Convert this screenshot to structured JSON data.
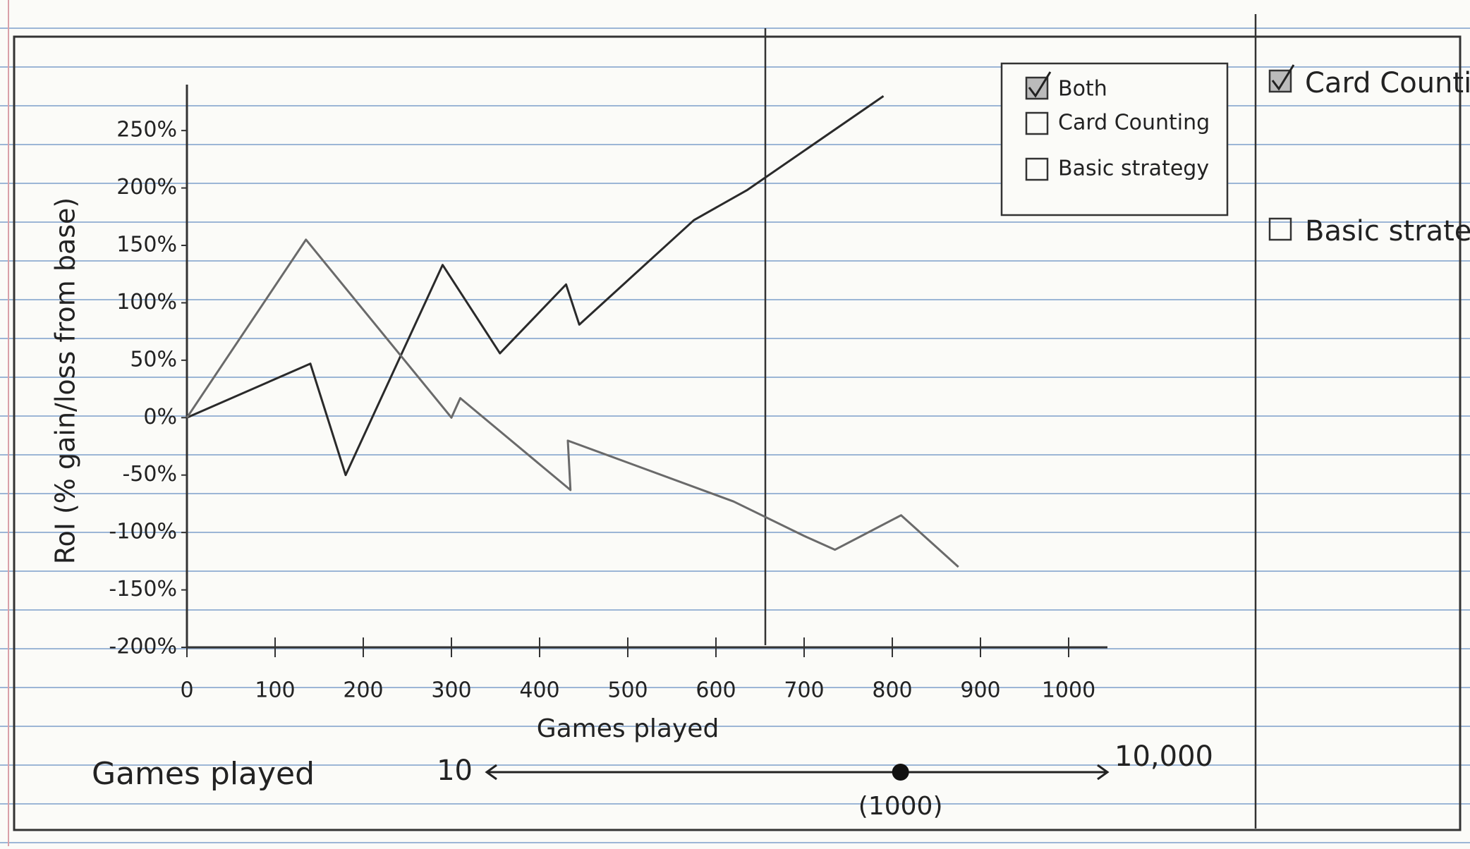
{
  "chart_data": {
    "type": "line",
    "x_label": "Games played",
    "y_label": "RoI (% gain/loss from base)",
    "xlim": [
      0,
      1000
    ],
    "xticks": [
      0,
      100,
      200,
      300,
      400,
      500,
      600,
      700,
      800,
      900,
      1000
    ],
    "ylim": [
      -200,
      290
    ],
    "yticks": [
      {
        "value": -200,
        "label": "-200%"
      },
      {
        "value": -150,
        "label": "-150%"
      },
      {
        "value": -100,
        "label": "-100%"
      },
      {
        "value": -50,
        "label": "-50%"
      },
      {
        "value": 0,
        "label": "0%"
      },
      {
        "value": 50,
        "label": "50%"
      },
      {
        "value": 100,
        "label": "100%"
      },
      {
        "value": 150,
        "label": "150%"
      },
      {
        "value": 200,
        "label": "200%"
      },
      {
        "value": 250,
        "label": "250%"
      }
    ],
    "legend_all": "Both",
    "legend_checked": [
      true,
      false,
      false
    ],
    "series": [
      {
        "name": "Card Counting",
        "color": "#2a2a2a",
        "x": [
          0,
          140,
          180,
          290,
          355,
          430,
          445,
          575,
          635,
          790
        ],
        "values": [
          0,
          47,
          -50,
          133,
          56,
          116,
          81,
          172,
          198,
          280
        ]
      },
      {
        "name": "Basic strategy",
        "color": "#6a6a6a",
        "x": [
          0,
          135,
          300,
          310,
          435,
          432,
          620,
          700,
          735,
          810,
          875
        ],
        "values": [
          0,
          155,
          0,
          17,
          -63,
          -20,
          -73,
          -103,
          -115,
          -85,
          -130
        ]
      }
    ]
  },
  "sidebar": {
    "options": [
      {
        "label": "Card Counting",
        "checked": true
      },
      {
        "label": "Basic strategy",
        "checked": false
      }
    ]
  },
  "slider": {
    "label": "Games played",
    "min": 10,
    "max": 10000,
    "max_label": "10,000",
    "value": 1000,
    "value_label": "(1000)",
    "scale": "log"
  }
}
